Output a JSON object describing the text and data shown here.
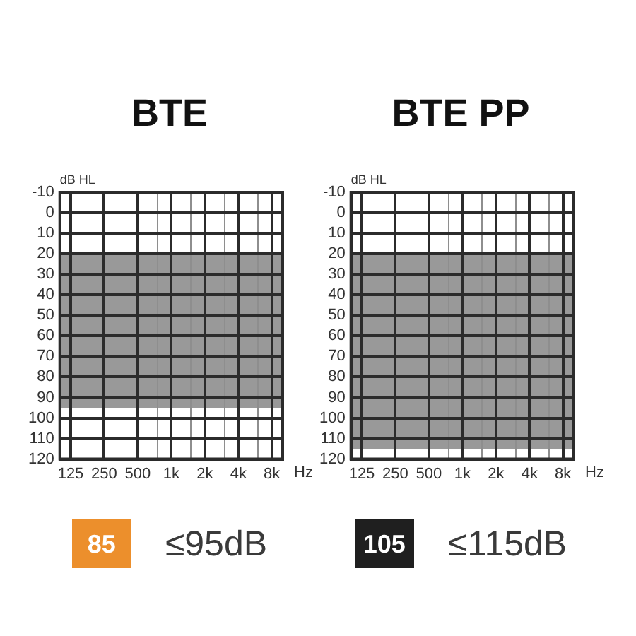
{
  "chart_data": [
    {
      "type": "area",
      "title": "BTE",
      "xlabel": "Hz",
      "ylabel": "dB HL",
      "log": "x",
      "xlim": [
        100,
        10000
      ],
      "xticks": [
        125,
        250,
        500,
        {
          "value": 750,
          "label": null
        },
        {
          "value": 1000,
          "label": "1k"
        },
        {
          "value": 1500,
          "label": null
        },
        {
          "value": 2000,
          "label": "2k"
        },
        {
          "value": 3000,
          "label": null
        },
        {
          "value": 4000,
          "label": "4k"
        },
        {
          "value": 6000,
          "label": null
        },
        {
          "value": 8000,
          "label": "8k"
        }
      ],
      "ylim": [
        120,
        -10
      ],
      "yticks": [
        -10,
        0,
        10,
        20,
        30,
        40,
        50,
        60,
        70,
        80,
        90,
        100,
        110,
        120
      ],
      "grid": true,
      "bands": [
        {
          "axis": "y",
          "from": 20,
          "to": 95,
          "color": "#999999"
        }
      ],
      "annotations": [
        "85",
        "≤95dB"
      ]
    },
    {
      "type": "area",
      "title": "BTE PP",
      "xlabel": "Hz",
      "ylabel": "dB HL",
      "log": "x",
      "xlim": [
        100,
        10000
      ],
      "xticks": [
        125,
        250,
        500,
        {
          "value": 750,
          "label": null
        },
        {
          "value": 1000,
          "label": "1k"
        },
        {
          "value": 1500,
          "label": null
        },
        {
          "value": 2000,
          "label": "2k"
        },
        {
          "value": 3000,
          "label": null
        },
        {
          "value": 4000,
          "label": "4k"
        },
        {
          "value": 6000,
          "label": null
        },
        {
          "value": 8000,
          "label": "8k"
        }
      ],
      "ylim": [
        120,
        -10
      ],
      "yticks": [
        -10,
        0,
        10,
        20,
        30,
        40,
        50,
        60,
        70,
        80,
        90,
        100,
        110,
        120
      ],
      "grid": true,
      "bands": [
        {
          "axis": "y",
          "from": 20,
          "to": 115,
          "color": "#999999"
        }
      ],
      "annotations": [
        "105",
        "≤115dB"
      ]
    }
  ]
}
